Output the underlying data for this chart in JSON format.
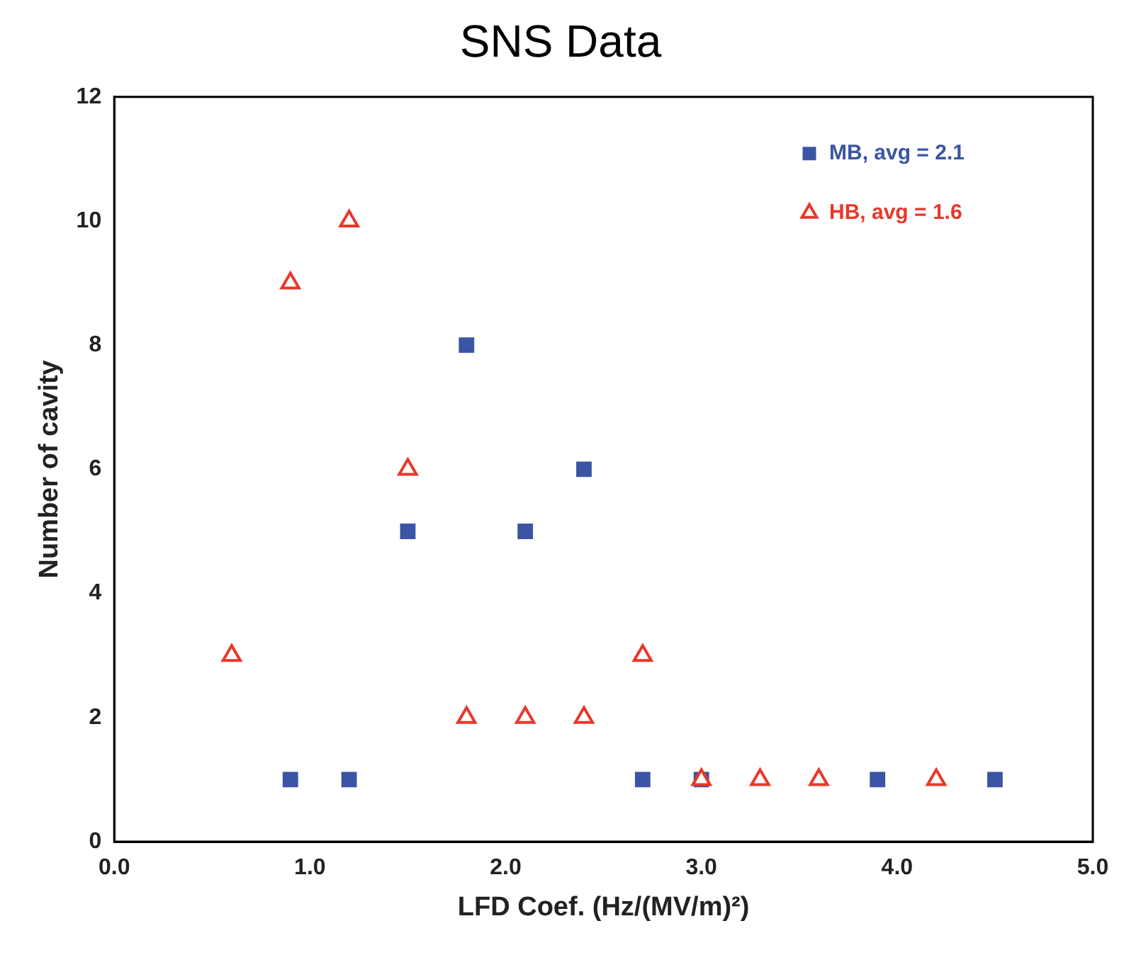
{
  "chart_data": {
    "type": "scatter",
    "title": "SNS Data",
    "xlabel": "LFD Coef. (Hz/(MV/m)²)",
    "ylabel": "Number of cavity",
    "series": [
      {
        "name": "MB, avg = 2.1",
        "color": "#3a55a4",
        "marker": "square",
        "x": [
          0.9,
          1.2,
          1.5,
          1.8,
          2.1,
          2.4,
          2.7,
          3.0,
          3.9,
          4.5
        ],
        "values": [
          1,
          1,
          5,
          8,
          5,
          6,
          1,
          1,
          1,
          1
        ]
      },
      {
        "name": "HB, avg = 1.6",
        "color": "#e8382a",
        "marker": "triangle",
        "x": [
          0.6,
          0.9,
          1.2,
          1.5,
          1.8,
          2.1,
          2.4,
          2.7,
          3.0,
          3.3,
          3.6,
          4.2
        ],
        "values": [
          3,
          9,
          10,
          6,
          2,
          2,
          2,
          3,
          1,
          1,
          1,
          1
        ]
      }
    ],
    "xlim": [
      0,
      5
    ],
    "xticks": [
      {
        "value": 0,
        "label": "0.0"
      },
      {
        "value": 1,
        "label": "1.0"
      },
      {
        "value": 2,
        "label": "2.0"
      },
      {
        "value": 3,
        "label": "3.0"
      },
      {
        "value": 4,
        "label": "4.0"
      },
      {
        "value": 5,
        "label": "5.0"
      }
    ],
    "ylim": [
      0,
      12
    ],
    "yticks": [
      0,
      2,
      4,
      6,
      8,
      10,
      12
    ],
    "grid": false,
    "legend": "top right"
  }
}
